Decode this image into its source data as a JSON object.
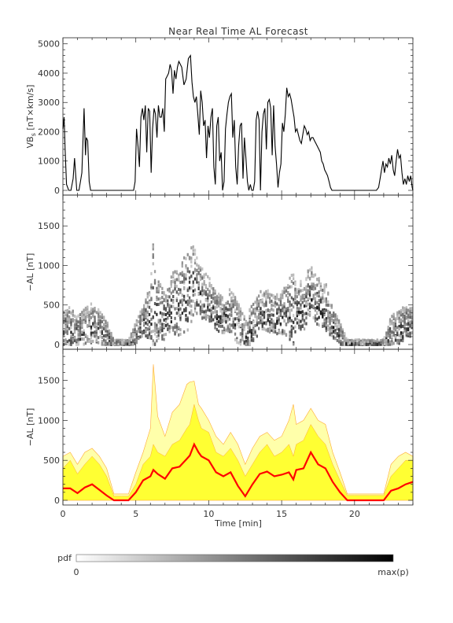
{
  "chart_data": {
    "title": "Near Real Time AL Forecast",
    "x_axis": {
      "label": "Time [min]",
      "range": [
        0,
        24
      ],
      "ticks": [
        0,
        5,
        10,
        15,
        20
      ],
      "tick_labels": [
        "0",
        "5",
        "10",
        "15",
        "20"
      ]
    },
    "panels": [
      {
        "id": "vbs",
        "type": "line",
        "ylabel": "VB_s [nT×km/s]",
        "ylabel_main": "VB",
        "ylabel_sub": "s",
        "ylabel_rest": " [nT×km/s]",
        "ylim": [
          0,
          5100
        ],
        "yticks": [
          0,
          1000,
          2000,
          3000,
          4000,
          5000
        ],
        "ytick_labels": [
          "0",
          "1000",
          "2000",
          "3000",
          "4000",
          "5000"
        ],
        "series": [
          {
            "color": "#000000",
            "x": [
              0,
              0.08,
              0.15,
              0.25,
              0.4,
              0.55,
              0.7,
              0.8,
              0.95,
              1.1,
              1.2,
              1.3,
              1.45,
              1.55,
              1.6,
              1.7,
              1.8,
              1.9,
              2.0,
              2.05,
              2.2,
              2.5,
              3,
              3.5,
              4,
              4.5,
              4.85,
              4.95,
              5.05,
              5.15,
              5.25,
              5.35,
              5.45,
              5.55,
              5.65,
              5.75,
              5.85,
              5.95,
              6.05,
              6.15,
              6.25,
              6.35,
              6.45,
              6.55,
              6.65,
              6.75,
              6.85,
              6.95,
              7.05,
              7.15,
              7.25,
              7.35,
              7.45,
              7.55,
              7.65,
              7.75,
              7.85,
              7.95,
              8.05,
              8.15,
              8.3,
              8.45,
              8.6,
              8.75,
              8.85,
              8.95,
              9.05,
              9.15,
              9.25,
              9.35,
              9.45,
              9.55,
              9.65,
              9.75,
              9.85,
              9.95,
              10.05,
              10.15,
              10.25,
              10.35,
              10.45,
              10.55,
              10.65,
              10.75,
              10.85,
              10.95,
              11.05,
              11.15,
              11.25,
              11.35,
              11.45,
              11.55,
              11.65,
              11.75,
              11.85,
              11.95,
              12.05,
              12.15,
              12.25,
              12.35,
              12.45,
              12.55,
              12.65,
              12.75,
              12.85,
              12.95,
              13.05,
              13.15,
              13.25,
              13.35,
              13.45,
              13.55,
              13.65,
              13.75,
              13.85,
              13.95,
              14.05,
              14.15,
              14.25,
              14.35,
              14.45,
              14.55,
              14.65,
              14.75,
              14.85,
              14.95,
              15.05,
              15.15,
              15.25,
              15.35,
              15.45,
              15.55,
              15.65,
              15.75,
              15.85,
              15.95,
              16.05,
              16.15,
              16.25,
              16.35,
              16.45,
              16.55,
              16.65,
              16.75,
              16.85,
              16.95,
              17.05,
              17.15,
              17.25,
              17.35,
              17.45,
              17.55,
              17.65,
              17.75,
              17.85,
              17.95,
              18.05,
              18.15,
              18.25,
              18.35,
              18.45,
              18.55,
              18.65,
              18.75,
              18.85,
              18.95,
              19.1,
              19.3,
              19.5,
              19.8,
              20.1,
              20.4,
              20.7,
              21.0,
              21.3,
              21.5,
              21.65,
              21.75,
              21.85,
              21.95,
              22.05,
              22.15,
              22.25,
              22.35,
              22.45,
              22.55,
              22.65,
              22.75,
              22.85,
              22.95,
              23.05,
              23.15,
              23.25,
              23.35,
              23.45,
              23.55,
              23.65,
              23.75,
              23.85,
              23.95,
              24.0
            ],
            "y": [
              2100,
              2500,
              1400,
              200,
              0,
              0,
              400,
              1100,
              0,
              0,
              300,
              600,
              2800,
              1200,
              1800,
              1700,
              300,
              0,
              0,
              0,
              0,
              0,
              0,
              0,
              0,
              0,
              0,
              300,
              2100,
              1500,
              800,
              2500,
              2800,
              2400,
              2900,
              1300,
              2800,
              2700,
              600,
              2100,
              2800,
              2600,
              1800,
              2900,
              2500,
              2500,
              2800,
              2000,
              3800,
              3900,
              4000,
              4300,
              4100,
              3300,
              4100,
              3800,
              4200,
              4400,
              4300,
              4200,
              3600,
              3800,
              4500,
              4600,
              3700,
              3200,
              3000,
              3200,
              2600,
              1900,
              3400,
              3000,
              2200,
              2400,
              1100,
              2200,
              1800,
              2500,
              2800,
              800,
              200,
              2200,
              2500,
              1000,
              1300,
              0,
              300,
              2100,
              2600,
              3000,
              3200,
              3300,
              1800,
              2400,
              800,
              200,
              1500,
              2200,
              2300,
              400,
              1800,
              1100,
              300,
              0,
              200,
              0,
              0,
              300,
              2400,
              2700,
              2400,
              0,
              2000,
              2600,
              2800,
              1400,
              3000,
              3100,
              2800,
              1200,
              2900,
              1500,
              900,
              100,
              600,
              900,
              2300,
              2000,
              2600,
              3500,
              3200,
              3300,
              3100,
              2800,
              2500,
              2000,
              2100,
              1900,
              1700,
              1600,
              1900,
              2200,
              2100,
              1900,
              2000,
              1700,
              1800,
              1800,
              1700,
              1600,
              1500,
              1400,
              1300,
              1000,
              900,
              700,
              600,
              500,
              300,
              100,
              0,
              0,
              0,
              0,
              0,
              0,
              0,
              0,
              0,
              0,
              0,
              0,
              0,
              0,
              0,
              0,
              100,
              400,
              700,
              1000,
              600,
              900,
              800,
              1100,
              900,
              1200,
              700,
              500,
              1000,
              1400,
              1100,
              1200,
              600,
              200,
              400,
              200,
              500,
              300,
              500,
              100,
              0
            ]
          }
        ]
      },
      {
        "id": "pdf",
        "type": "heatmap",
        "ylabel": "−AL [nT]",
        "ylim": [
          0,
          1850
        ],
        "yticks": [
          0,
          500,
          1000,
          1500
        ],
        "ytick_labels": [
          "0",
          "500",
          "1000",
          "1500"
        ],
        "value_scale": "pdf from 0 (white) to max(p) (black)"
      },
      {
        "id": "forecast",
        "type": "area",
        "ylabel": "−AL [nT]",
        "ylim": [
          0,
          1850
        ],
        "yticks": [
          0,
          500,
          1000,
          1500
        ],
        "ytick_labels": [
          "0",
          "500",
          "1000",
          "1500"
        ],
        "colors": {
          "median": "#ff0000",
          "band_inner": "#ffff33",
          "band_outer": "#ffffaa",
          "band_edge": "#ffaa33"
        },
        "x": [
          0,
          0.5,
          1.0,
          1.5,
          2.0,
          2.5,
          3.0,
          3.5,
          4.0,
          4.5,
          5.0,
          5.5,
          6.0,
          6.2,
          6.5,
          7.0,
          7.5,
          8.0,
          8.5,
          8.7,
          9.0,
          9.3,
          9.5,
          10.0,
          10.5,
          11.0,
          11.5,
          12.0,
          12.5,
          13.0,
          13.5,
          14.0,
          14.5,
          15.0,
          15.5,
          15.8,
          16.0,
          16.5,
          17.0,
          17.5,
          18.0,
          18.5,
          19.0,
          19.5,
          20.0,
          20.5,
          21.0,
          21.5,
          22.0,
          22.5,
          23.0,
          23.5,
          24.0
        ],
        "median": [
          150,
          150,
          90,
          160,
          200,
          130,
          60,
          0,
          0,
          0,
          100,
          250,
          300,
          380,
          330,
          270,
          400,
          420,
          520,
          560,
          700,
          600,
          550,
          500,
          350,
          300,
          350,
          180,
          50,
          200,
          330,
          360,
          300,
          320,
          350,
          260,
          380,
          400,
          600,
          450,
          400,
          230,
          100,
          0,
          0,
          0,
          0,
          0,
          0,
          120,
          150,
          200,
          230
        ],
        "inner_upper": [
          400,
          500,
          330,
          450,
          550,
          450,
          300,
          50,
          50,
          50,
          200,
          450,
          550,
          700,
          600,
          550,
          700,
          750,
          900,
          950,
          1200,
          1000,
          900,
          850,
          600,
          550,
          650,
          500,
          300,
          450,
          600,
          700,
          550,
          600,
          700,
          550,
          700,
          750,
          950,
          800,
          700,
          450,
          250,
          60,
          60,
          60,
          60,
          60,
          60,
          300,
          400,
          500,
          500
        ],
        "outer_upper": [
          550,
          600,
          450,
          600,
          650,
          550,
          400,
          80,
          80,
          80,
          350,
          600,
          900,
          1700,
          1050,
          800,
          1100,
          1200,
          1450,
          1480,
          1490,
          1200,
          1150,
          1000,
          800,
          700,
          850,
          700,
          450,
          650,
          800,
          850,
          750,
          800,
          1000,
          1200,
          950,
          1000,
          1150,
          1000,
          950,
          600,
          350,
          80,
          80,
          80,
          80,
          80,
          80,
          450,
          550,
          600,
          550
        ]
      }
    ],
    "colorbar": {
      "label": "pdf",
      "min_label": "0",
      "max_label": "max(p)"
    }
  }
}
